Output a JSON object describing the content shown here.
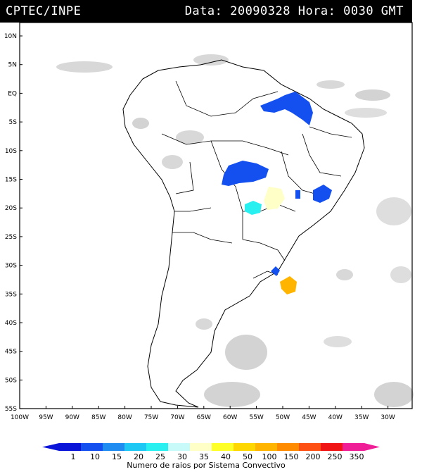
{
  "header": {
    "source": "CPTEC/INPE",
    "datetime": "Data: 20090328 Hora: 0030 GMT"
  },
  "map": {
    "lat_labels": [
      "10N",
      "5N",
      "EQ",
      "5S",
      "10S",
      "15S",
      "20S",
      "25S",
      "30S",
      "35S",
      "40S",
      "45S",
      "50S",
      "55S"
    ],
    "lon_labels": [
      "100W",
      "95W",
      "90W",
      "85W",
      "80W",
      "75W",
      "70W",
      "65W",
      "60W",
      "55W",
      "50W",
      "45W",
      "40W",
      "35W",
      "30W"
    ],
    "colors": {
      "cloud": "#bdbdbd",
      "border": "#000000",
      "frame": "#000000"
    }
  },
  "legend": {
    "labels": [
      "1",
      "10",
      "15",
      "20",
      "25",
      "30",
      "35",
      "40",
      "50",
      "100",
      "150",
      "200",
      "250",
      "350"
    ],
    "colors": [
      "#0a14d8",
      "#1450f0",
      "#1e8cf0",
      "#1ec8f5",
      "#28f0f0",
      "#c8fafa",
      "#ffffc8",
      "#ffff28",
      "#ffd700",
      "#ffb400",
      "#ff8c00",
      "#ff5014",
      "#f01414",
      "#f01e96"
    ],
    "title": "Numero de raios por Sistema Convectivo"
  },
  "convective_systems": [
    {
      "name": "amazon-mouth",
      "color": "#1450f0"
    },
    {
      "name": "mato-grosso",
      "color": "#1450f0"
    },
    {
      "name": "minas-gerais",
      "color": "#1450f0"
    },
    {
      "name": "goias-small",
      "color": "#1450f0"
    },
    {
      "name": "mato-grosso-sul",
      "color": "#28f0f0"
    },
    {
      "name": "central-pale",
      "color": "#ffffc8"
    },
    {
      "name": "uruguay-coast",
      "color": "#1450f0"
    },
    {
      "name": "south-atlantic",
      "color": "#ffb400"
    }
  ]
}
